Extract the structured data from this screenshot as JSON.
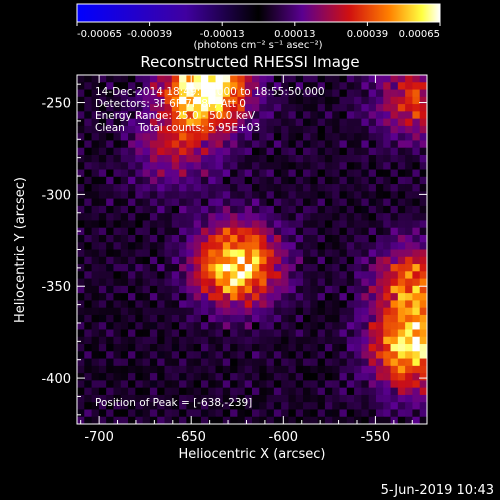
{
  "chart_data": {
    "type": "heatmap",
    "title": "Reconstructed RHESSI Image",
    "xlabel": "Heliocentric X (arcsec)",
    "ylabel": "Heliocentric Y (arcsec)",
    "xlim": [
      -712,
      -522
    ],
    "ylim": [
      -425,
      -235
    ],
    "x_ticks": [
      -700,
      -650,
      -600,
      -550
    ],
    "y_ticks": [
      -250,
      -300,
      -350,
      -400
    ],
    "x_tick_labels": [
      "-700",
      "-650",
      "-600",
      "-550"
    ],
    "y_tick_labels": [
      "-250",
      "-300",
      "-350",
      "-400"
    ],
    "colorbar": {
      "range": [
        -0.00065,
        0.00065
      ],
      "ticks": [
        -0.00065,
        -0.00039,
        -0.00013,
        0.00013,
        0.00039,
        0.00065
      ],
      "tick_labels": [
        "-0.00065",
        "-0.00039",
        "-0.00013",
        "0.00013",
        "0.00039",
        "0.00065"
      ],
      "unit_label": "(photons cm⁻² s⁻¹ asec⁻²)",
      "colors": [
        "#0000ff",
        "#4000a0",
        "#000000",
        "#5a0090",
        "#d01010",
        "#ff8000",
        "#ffff40",
        "#ffffff"
      ]
    },
    "annotations": {
      "time_range": "14-Dec-2014 18:49:50.000 to 18:55:50.000",
      "detectors": "Detectors: 3F 6F 7F 8F, Att 0",
      "energy_range": "Energy Range: 25.0 - 50.0 keV",
      "method_counts": "Clean    Total counts: 5.95E+03",
      "peak_position": "Position of Peak = [-638,-239]"
    },
    "sources": [
      {
        "x": -625,
        "y": -338,
        "amplitude": 0.00055
      },
      {
        "x": -642,
        "y": -242,
        "amplitude": 0.00065
      },
      {
        "x": -530,
        "y": -385,
        "amplitude": 0.0005
      },
      {
        "x": -528,
        "y": -350,
        "amplitude": 0.00038
      },
      {
        "x": -527,
        "y": -248,
        "amplitude": 0.0003
      },
      {
        "x": -660,
        "y": -275,
        "amplitude": 0.0002
      }
    ]
  },
  "footer": {
    "timestamp": "5-Jun-2019 10:43"
  }
}
